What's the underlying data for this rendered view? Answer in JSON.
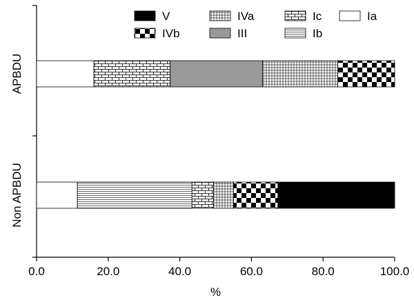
{
  "chart_data": {
    "type": "bar",
    "orientation": "horizontal",
    "stacked": true,
    "categories": [
      "APBDU",
      "Non APBDU"
    ],
    "series": [
      {
        "name": "Ia",
        "pattern": "white",
        "values": [
          16.0,
          11.4
        ]
      },
      {
        "name": "Ib",
        "pattern": "hlines",
        "values": [
          0.0,
          32.0
        ]
      },
      {
        "name": "Ic",
        "pattern": "bricks",
        "values": [
          21.3,
          6.0
        ]
      },
      {
        "name": "III",
        "pattern": "gray",
        "values": [
          25.8,
          0.0
        ]
      },
      {
        "name": "IVa",
        "pattern": "grid",
        "values": [
          21.0,
          5.6
        ]
      },
      {
        "name": "IVb",
        "pattern": "checkerboard",
        "values": [
          15.9,
          12.4
        ]
      },
      {
        "name": "V",
        "pattern": "black",
        "values": [
          0.0,
          32.6
        ]
      }
    ],
    "legend_order": [
      "V",
      "IVa",
      "Ic",
      "Ia",
      "IVb",
      "III",
      "Ib"
    ],
    "legend_position": "top",
    "xlim": [
      0,
      100
    ],
    "xticks": [
      "0.0",
      "20.0",
      "40.0",
      "60.0",
      "80.0",
      "100.0"
    ],
    "xlabel": "%",
    "ylabel": "",
    "title": "",
    "grid": false,
    "colors": {
      "ink": "#000000",
      "fill_gray": "#999999",
      "background": "#ffffff"
    }
  }
}
